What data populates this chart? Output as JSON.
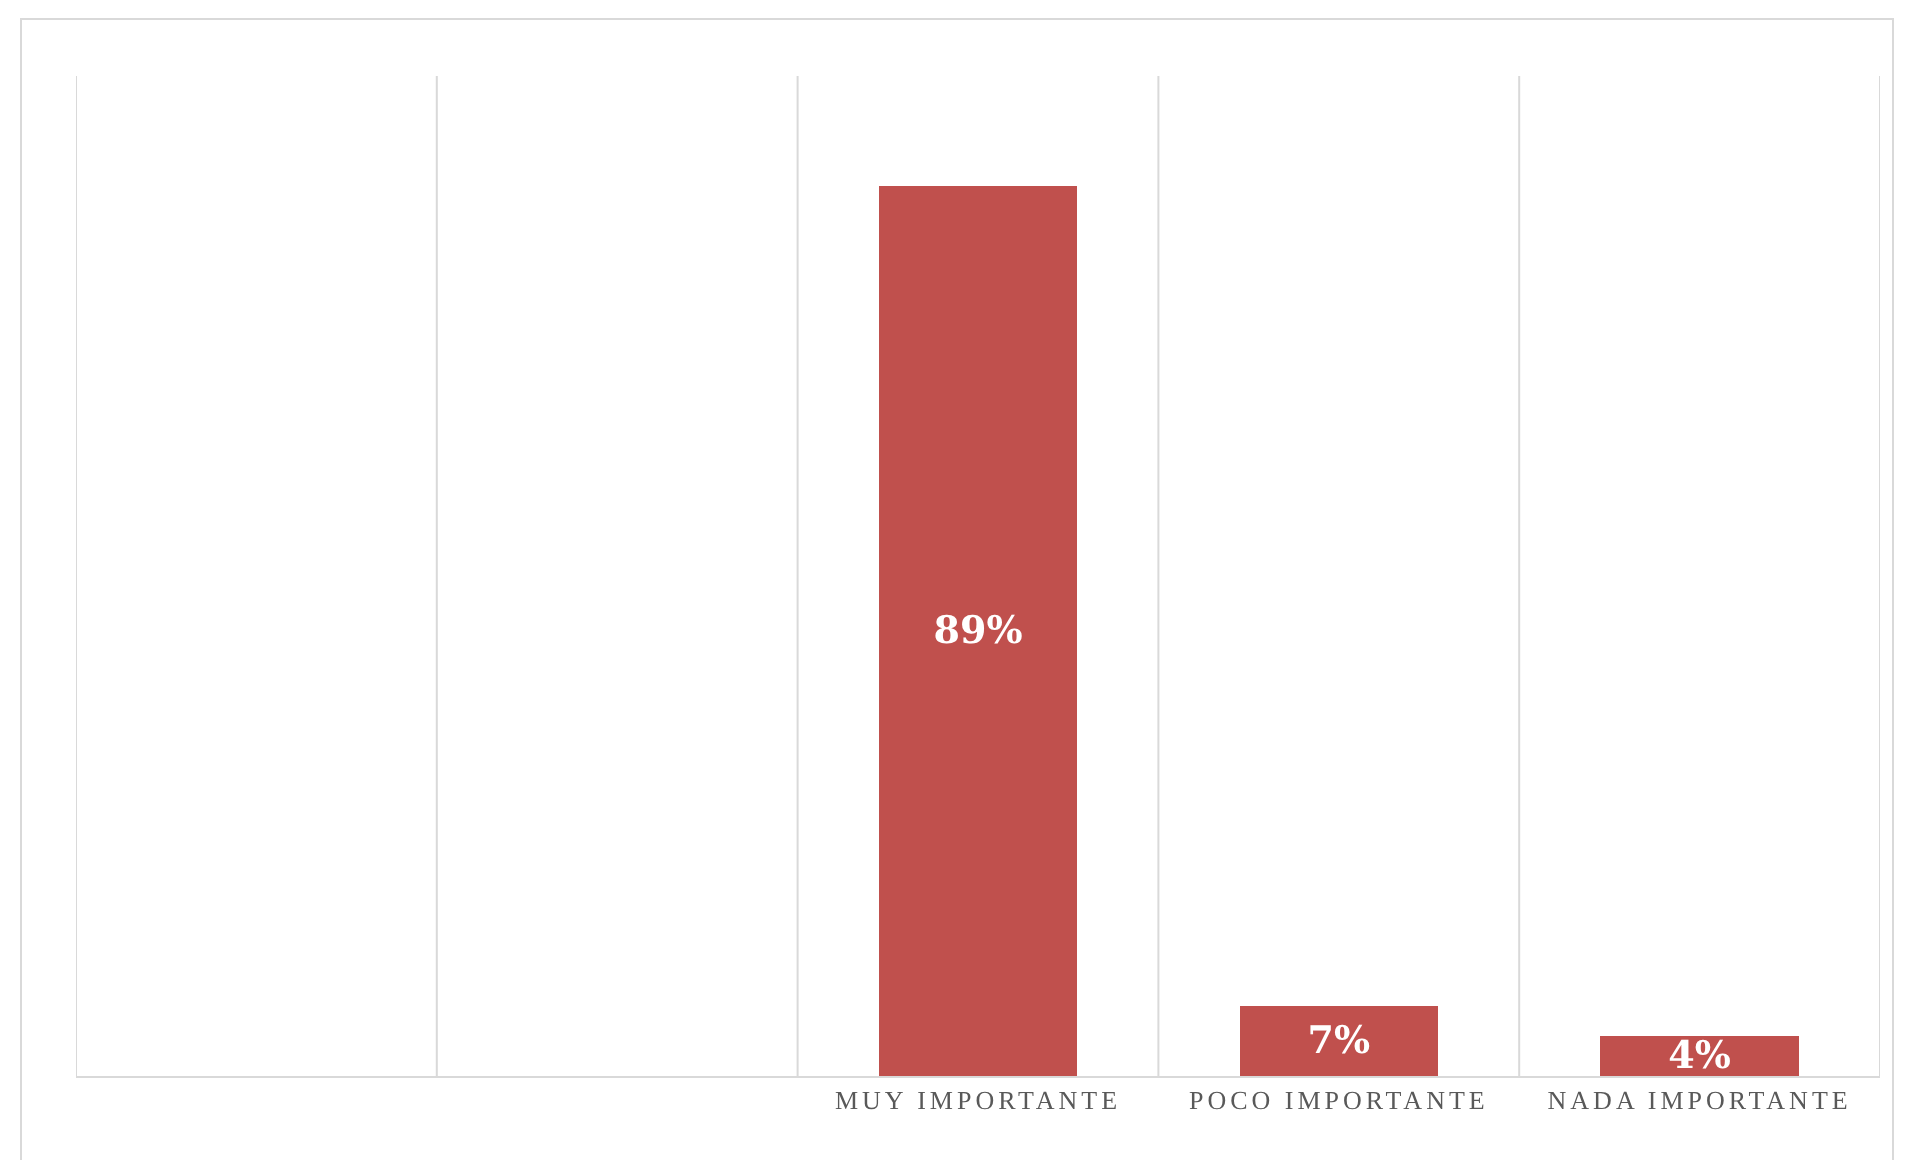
{
  "chart_data": {
    "type": "bar",
    "categories": [
      null,
      null,
      "MUY IMPORTANTE",
      "POCO IMPORTANTE",
      "NADA IMPORTANTE"
    ],
    "values": [
      null,
      null,
      89,
      7,
      4
    ],
    "value_labels": [
      null,
      null,
      "89%",
      "7%",
      "4%"
    ],
    "color": "#c0504d",
    "ylim": [
      0,
      100
    ],
    "grid": "x",
    "tick_labels": "x"
  }
}
